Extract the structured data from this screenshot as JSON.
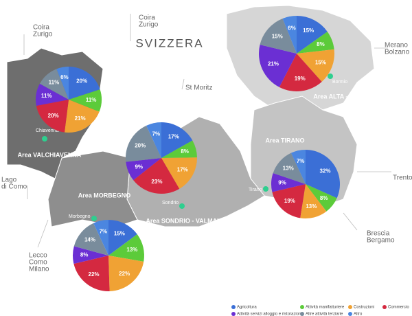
{
  "map": {
    "country": "SVIZZERA",
    "places": [
      [
        "Coira",
        "Zurigo"
      ],
      [
        "Coira",
        "Zurigo"
      ],
      [
        "St Moritz"
      ],
      [
        "Merano",
        "Bolzano"
      ],
      [
        "Trento"
      ],
      [
        "Brescia",
        "Bergamo"
      ],
      [
        "Lecco",
        "Como",
        "Milano"
      ],
      [
        "Lago",
        "di Como"
      ]
    ],
    "towns": [
      "Chiavenna",
      "Morbegno",
      "Sondrio",
      "Tirano",
      "Bormio"
    ],
    "areas": [
      "Area VALCHIAVENNA",
      "Area MORBEGNO",
      "Area SONDRIO - VALMALENCO",
      "Area TIRANO",
      "Area ALTA - VALTELLINA"
    ]
  },
  "legend": [
    {
      "name": "Agricoltura",
      "color": "#3b6fd6"
    },
    {
      "name": "Attività manifatturiere",
      "color": "#5ccb3a"
    },
    {
      "name": "Costruzioni",
      "color": "#f0a234"
    },
    {
      "name": "Commercio",
      "color": "#d42940"
    },
    {
      "name": "Attività servizi alloggio e ristorazione",
      "color": "#6b2fd3"
    },
    {
      "name": "Altre attività terziarie",
      "color": "#798c9c"
    },
    {
      "name": "Altro",
      "color": "#4b86e0"
    }
  ],
  "chart_data": [
    {
      "type": "pie",
      "values": [
        20,
        11,
        21,
        20,
        11,
        11,
        6
      ],
      "value_labels": [
        "20%",
        "11%",
        "21%",
        "20%",
        "11%",
        "11%",
        "6%"
      ]
    },
    {
      "type": "pie",
      "values": [
        17,
        8,
        17,
        23,
        9,
        20,
        7
      ],
      "value_labels": [
        "17%",
        "8%",
        "17%",
        "23%",
        "9%",
        "20%",
        "7%"
      ]
    },
    {
      "type": "pie",
      "values": [
        15,
        8,
        15,
        19,
        21,
        15,
        6
      ],
      "value_labels": [
        "15%",
        "8%",
        "15%",
        "19%",
        "21%",
        "15%",
        "6%"
      ]
    },
    {
      "type": "pie",
      "values": [
        32,
        8,
        13,
        19,
        9,
        13,
        7
      ],
      "value_labels": [
        "32%",
        "8%",
        "13%",
        "19%",
        "9%",
        "13%",
        "7%"
      ]
    },
    {
      "type": "pie",
      "values": [
        15,
        13,
        22,
        22,
        8,
        14,
        7
      ],
      "value_labels": [
        "15%",
        "13%",
        "22%",
        "22%",
        "8%",
        "14%",
        "7%"
      ]
    }
  ]
}
